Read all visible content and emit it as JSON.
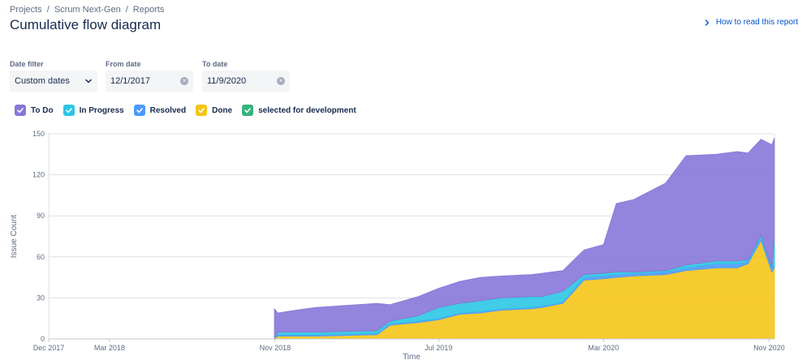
{
  "breadcrumb": {
    "items": [
      "Projects",
      "Scrum Next-Gen",
      "Reports"
    ],
    "separator": "/"
  },
  "page_title": "Cumulative flow diagram",
  "help_link": "How to read this report",
  "filters": {
    "date_filter": {
      "label": "Date filter",
      "value": "Custom dates"
    },
    "from_date": {
      "label": "From date",
      "value": "12/1/2017"
    },
    "to_date": {
      "label": "To date",
      "value": "11/9/2020"
    }
  },
  "legend": [
    {
      "label": "To Do",
      "color": "#8777d9"
    },
    {
      "label": "In Progress",
      "color": "#2cc6e6"
    },
    {
      "label": "Resolved",
      "color": "#4c9aff"
    },
    {
      "label": "Done",
      "color": "#f5c518"
    },
    {
      "label": "selected for development",
      "color": "#36b37e"
    }
  ],
  "chart_data": {
    "type": "area",
    "stacked": true,
    "xlabel": "Time",
    "ylabel": "Issue Count",
    "ylim": [
      0,
      150
    ],
    "yticks": [
      0,
      30,
      60,
      90,
      120,
      150
    ],
    "xlim": [
      "2017-12-01",
      "2020-11-09"
    ],
    "xticks": [
      {
        "date": "2017-12-01",
        "label": "Dec 2017"
      },
      {
        "date": "2018-03-01",
        "label": "Mar 2018"
      },
      {
        "date": "2018-11-01",
        "label": "Nov 2018"
      },
      {
        "date": "2019-07-01",
        "label": "Jul 2019"
      },
      {
        "date": "2020-03-01",
        "label": "Mar 2020"
      },
      {
        "date": "2020-11-01",
        "label": "Nov 2020"
      }
    ],
    "grid": true,
    "x": [
      "2018-10-31",
      "2018-11-05",
      "2018-12-01",
      "2019-01-01",
      "2019-04-01",
      "2019-04-20",
      "2019-06-01",
      "2019-07-01",
      "2019-08-01",
      "2019-09-01",
      "2019-10-01",
      "2019-11-15",
      "2019-12-01",
      "2020-01-01",
      "2020-02-01",
      "2020-03-01",
      "2020-03-20",
      "2020-04-15",
      "2020-06-01",
      "2020-07-01",
      "2020-08-15",
      "2020-09-15",
      "2020-10-01",
      "2020-10-20",
      "2020-11-05",
      "2020-11-09"
    ],
    "series": [
      {
        "name": "Done",
        "values": [
          0,
          2,
          2,
          2,
          3,
          10,
          12,
          14,
          18,
          19,
          21,
          22,
          23,
          26,
          43,
          44,
          45,
          46,
          47,
          50,
          52,
          52,
          55,
          72,
          49,
          52
        ]
      },
      {
        "name": "Resolved",
        "values": [
          0,
          1,
          1,
          1,
          1,
          1,
          1,
          1,
          1,
          1,
          1,
          1,
          1,
          1,
          2,
          2,
          2,
          2,
          2,
          2,
          3,
          3,
          2,
          2,
          2,
          2
        ]
      },
      {
        "name": "In Progress",
        "values": [
          0,
          2,
          2,
          2,
          2,
          2,
          4,
          8,
          7,
          8,
          8,
          8,
          7,
          8,
          2,
          2,
          2,
          1,
          1,
          2,
          2,
          2,
          1,
          2,
          1,
          20
        ]
      },
      {
        "name": "selected for development",
        "values": [
          0,
          0,
          0,
          0,
          0,
          0,
          0,
          0,
          0,
          0,
          0,
          0,
          0,
          0,
          0,
          0,
          0,
          0,
          0,
          0,
          0,
          0,
          0,
          0,
          0,
          0
        ]
      },
      {
        "name": "To Do",
        "values": [
          22,
          14,
          16,
          18,
          20,
          12,
          14,
          14,
          16,
          17,
          16,
          16,
          17,
          15,
          18,
          21,
          50,
          53,
          64,
          80,
          78,
          80,
          78,
          70,
          90,
          73
        ]
      }
    ]
  }
}
